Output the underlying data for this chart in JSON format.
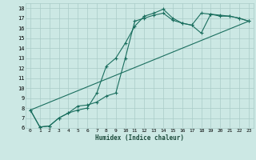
{
  "xlabel": "Humidex (Indice chaleur)",
  "bg_color": "#cce8e4",
  "grid_color": "#aaccc8",
  "line_color": "#1a6e5e",
  "xlim": [
    -0.5,
    23.5
  ],
  "ylim": [
    6,
    18.5
  ],
  "xticks": [
    0,
    1,
    2,
    3,
    4,
    5,
    6,
    7,
    8,
    9,
    10,
    11,
    12,
    13,
    14,
    15,
    16,
    17,
    18,
    19,
    20,
    21,
    22,
    23
  ],
  "yticks": [
    6,
    7,
    8,
    9,
    10,
    11,
    12,
    13,
    14,
    15,
    16,
    17,
    18
  ],
  "line1_x": [
    0,
    1,
    2,
    3,
    4,
    5,
    6,
    7,
    8,
    9,
    10,
    11,
    12,
    13,
    14,
    15,
    16,
    17,
    18,
    19,
    20,
    21,
    22,
    23
  ],
  "line1_y": [
    7.8,
    6.1,
    6.2,
    7.0,
    7.5,
    7.8,
    8.0,
    9.5,
    12.2,
    13.0,
    14.5,
    16.2,
    17.2,
    17.5,
    17.9,
    17.0,
    16.5,
    16.3,
    17.5,
    17.4,
    17.2,
    17.2,
    17.0,
    16.7
  ],
  "line2_x": [
    0,
    1,
    2,
    3,
    4,
    5,
    6,
    7,
    8,
    9,
    10,
    11,
    12,
    13,
    14,
    15,
    16,
    17,
    18,
    19,
    20,
    21,
    22,
    23
  ],
  "line2_y": [
    7.8,
    6.1,
    6.2,
    7.0,
    7.5,
    8.2,
    8.3,
    8.6,
    9.2,
    9.5,
    13.0,
    16.7,
    17.0,
    17.3,
    17.5,
    16.8,
    16.5,
    16.3,
    15.5,
    17.4,
    17.3,
    17.2,
    17.0,
    16.7
  ],
  "line3_x": [
    0,
    23
  ],
  "line3_y": [
    7.8,
    16.7
  ]
}
